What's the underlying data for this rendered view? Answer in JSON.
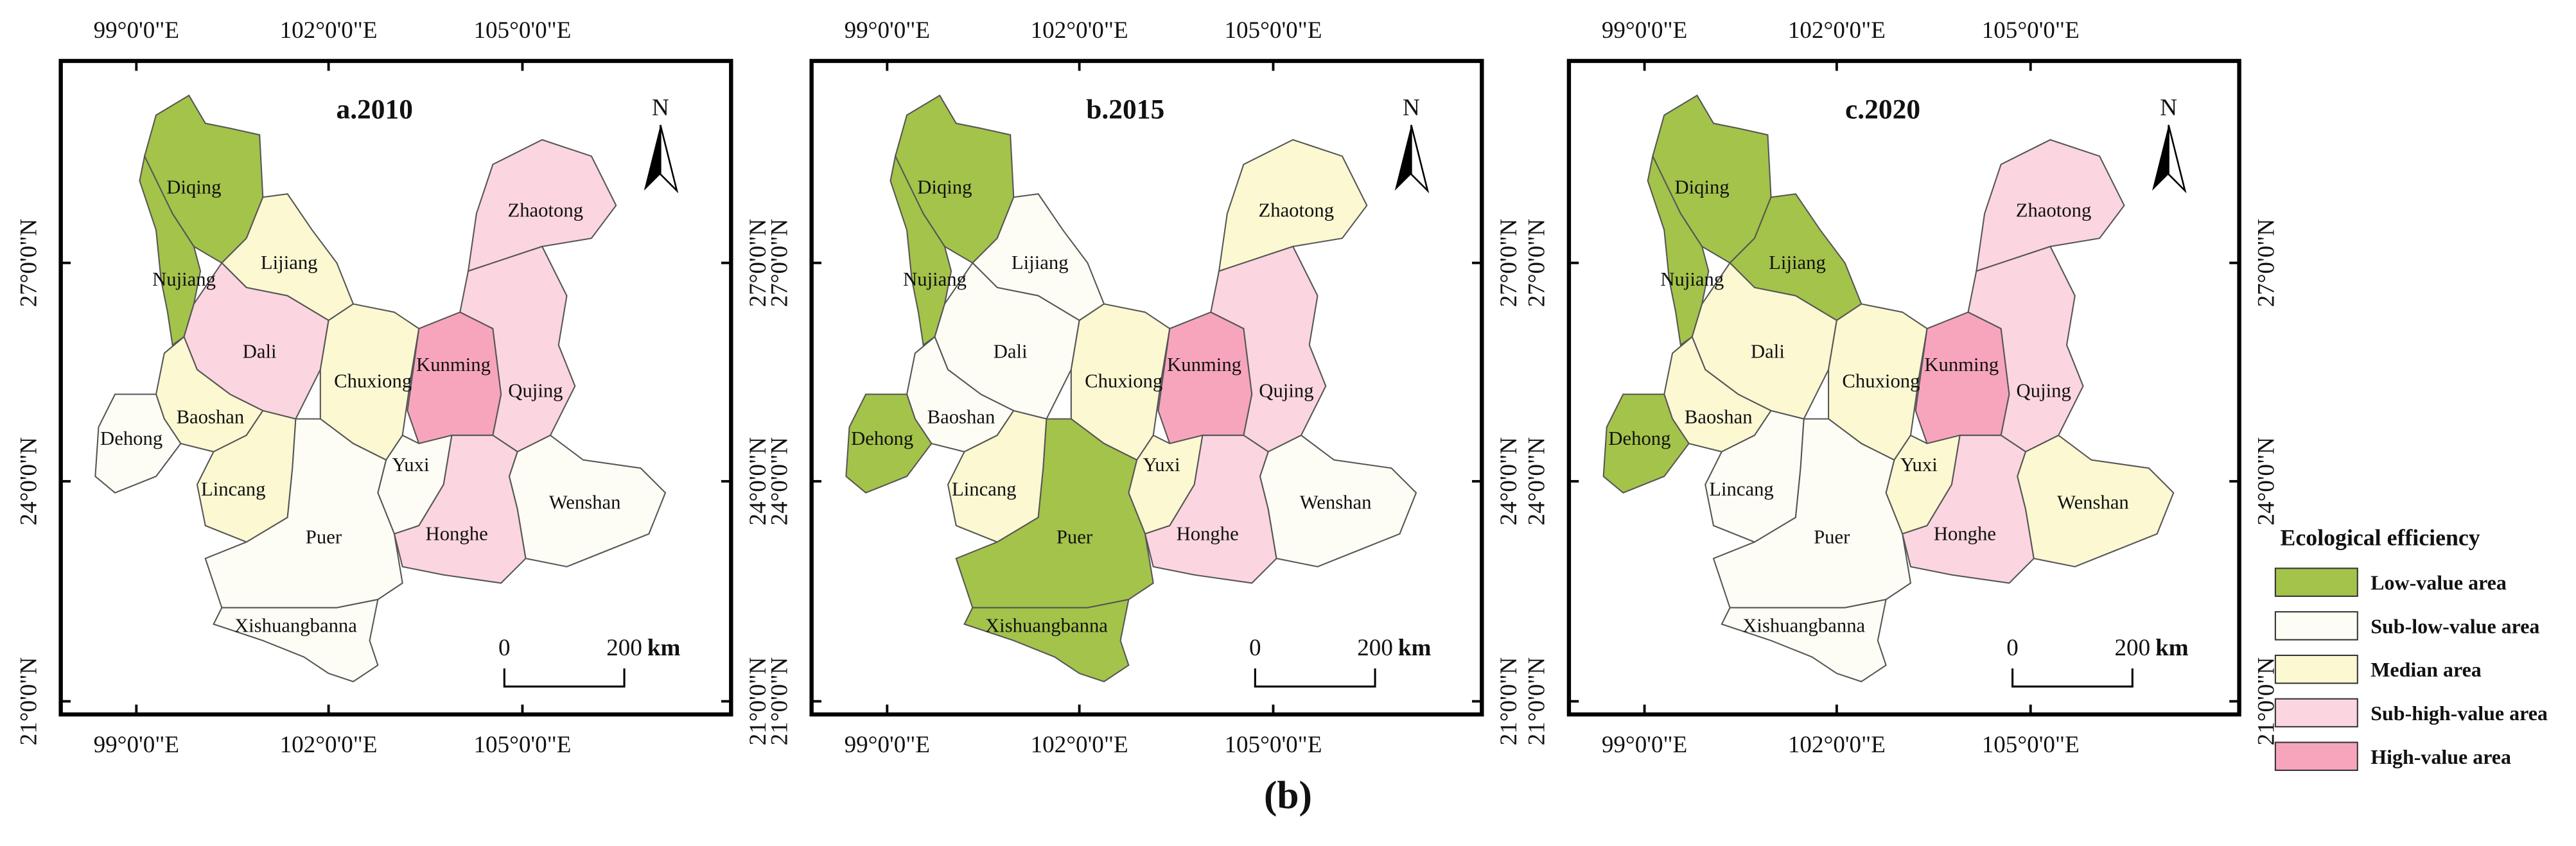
{
  "figure_label": "(b)",
  "axes": {
    "lon_ticks": [
      "99°0'0\"E",
      "102°0'0\"E",
      "105°0'0\"E"
    ],
    "lat_ticks": [
      "27°0'0\"N",
      "24°0'0\"N",
      "21°0'0\"N"
    ]
  },
  "north_label": "N",
  "scale_bar": {
    "labels": [
      "0",
      "200"
    ],
    "unit": "km"
  },
  "legend": {
    "title": "Ecological efficiency",
    "classes": [
      {
        "name": "Low-value area",
        "color": "#a4c34a"
      },
      {
        "name": "Sub-low-value area",
        "color": "#fefdf5"
      },
      {
        "name": "Median area",
        "color": "#fbf8d2"
      },
      {
        "name": "Sub-high-value area",
        "color": "#fbd5df"
      },
      {
        "name": "High-value area",
        "color": "#f7a5bd"
      }
    ]
  },
  "maps": [
    {
      "title": "a.2010",
      "regions": [
        {
          "name": "Diqing",
          "class": "Low-value area"
        },
        {
          "name": "Nujiang",
          "class": "Low-value area"
        },
        {
          "name": "Lijiang",
          "class": "Median area"
        },
        {
          "name": "Zhaotong",
          "class": "Sub-high-value area"
        },
        {
          "name": "Dali",
          "class": "Sub-high-value area"
        },
        {
          "name": "Chuxiong",
          "class": "Median area"
        },
        {
          "name": "Kunming",
          "class": "High-value area"
        },
        {
          "name": "Qujing",
          "class": "Sub-high-value area"
        },
        {
          "name": "Baoshan",
          "class": "Median area"
        },
        {
          "name": "Dehong",
          "class": "Sub-low-value area"
        },
        {
          "name": "Lincang",
          "class": "Median area"
        },
        {
          "name": "Yuxi",
          "class": "Sub-low-value area"
        },
        {
          "name": "Puer",
          "class": "Sub-low-value area"
        },
        {
          "name": "Honghe",
          "class": "Sub-high-value area"
        },
        {
          "name": "Wenshan",
          "class": "Sub-low-value area"
        },
        {
          "name": "Xishuangbanna",
          "class": "Sub-low-value area"
        }
      ]
    },
    {
      "title": "b.2015",
      "regions": [
        {
          "name": "Diqing",
          "class": "Low-value area"
        },
        {
          "name": "Nujiang",
          "class": "Low-value area"
        },
        {
          "name": "Lijiang",
          "class": "Sub-low-value area"
        },
        {
          "name": "Zhaotong",
          "class": "Median area"
        },
        {
          "name": "Dali",
          "class": "Sub-low-value area"
        },
        {
          "name": "Chuxiong",
          "class": "Median area"
        },
        {
          "name": "Kunming",
          "class": "High-value area"
        },
        {
          "name": "Qujing",
          "class": "Sub-high-value area"
        },
        {
          "name": "Baoshan",
          "class": "Sub-low-value area"
        },
        {
          "name": "Dehong",
          "class": "Low-value area"
        },
        {
          "name": "Lincang",
          "class": "Median area"
        },
        {
          "name": "Yuxi",
          "class": "Median area"
        },
        {
          "name": "Puer",
          "class": "Low-value area"
        },
        {
          "name": "Honghe",
          "class": "Sub-high-value area"
        },
        {
          "name": "Wenshan",
          "class": "Sub-low-value area"
        },
        {
          "name": "Xishuangbanna",
          "class": "Low-value area"
        }
      ]
    },
    {
      "title": "c.2020",
      "regions": [
        {
          "name": "Diqing",
          "class": "Low-value area"
        },
        {
          "name": "Nujiang",
          "class": "Low-value area"
        },
        {
          "name": "Lijiang",
          "class": "Low-value area"
        },
        {
          "name": "Zhaotong",
          "class": "Sub-high-value area"
        },
        {
          "name": "Dali",
          "class": "Median area"
        },
        {
          "name": "Chuxiong",
          "class": "Median area"
        },
        {
          "name": "Kunming",
          "class": "High-value area"
        },
        {
          "name": "Qujing",
          "class": "Sub-high-value area"
        },
        {
          "name": "Baoshan",
          "class": "Median area"
        },
        {
          "name": "Dehong",
          "class": "Low-value area"
        },
        {
          "name": "Lincang",
          "class": "Sub-low-value area"
        },
        {
          "name": "Yuxi",
          "class": "Median area"
        },
        {
          "name": "Puer",
          "class": "Sub-low-value area"
        },
        {
          "name": "Honghe",
          "class": "Sub-high-value area"
        },
        {
          "name": "Wenshan",
          "class": "Median area"
        },
        {
          "name": "Xishuangbanna",
          "class": "Sub-low-value area"
        }
      ]
    }
  ]
}
